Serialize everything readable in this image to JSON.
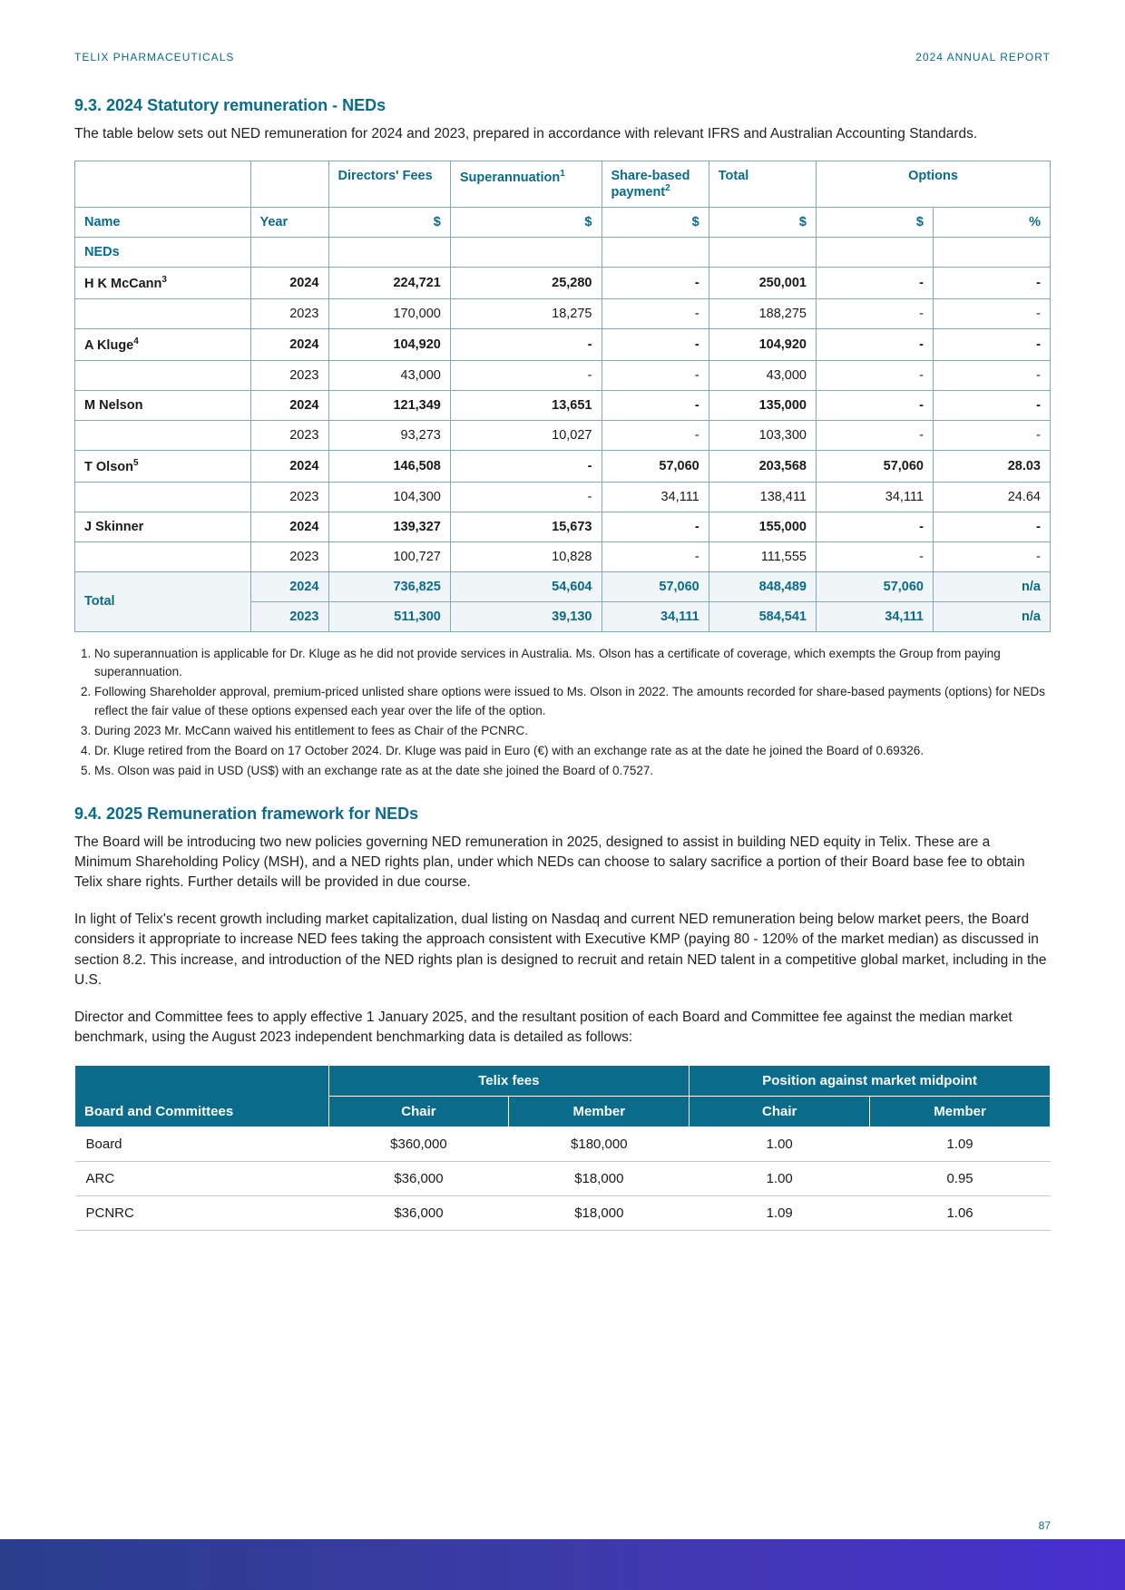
{
  "header": {
    "left": "TELIX PHARMACEUTICALS",
    "right": "2024 ANNUAL REPORT"
  },
  "section93": {
    "title": "9.3. 2024 Statutory remuneration - NEDs",
    "intro": "The table below sets out NED remuneration for 2024 and 2023, prepared in accordance with relevant IFRS and Australian Accounting Standards."
  },
  "remun_table": {
    "header_row1": {
      "blank1": "",
      "blank2": "",
      "directors_fees": "Directors' Fees",
      "superannuation": "Superannuation",
      "super_note": "1",
      "share_based": "Share-based payment",
      "share_note": "2",
      "total": "Total",
      "options": "Options"
    },
    "header_row2": {
      "name": "Name",
      "year": "Year",
      "c1": "$",
      "c2": "$",
      "c3": "$",
      "c4": "$",
      "c5": "$",
      "c6": "%"
    },
    "neds_label": "NEDs",
    "rows": [
      {
        "name": "H K McCann",
        "note": "3",
        "year": "2024",
        "v": [
          "224,721",
          "25,280",
          "-",
          "250,001",
          "-",
          "-"
        ],
        "bold": true
      },
      {
        "name": "",
        "note": "",
        "year": "2023",
        "v": [
          "170,000",
          "18,275",
          "-",
          "188,275",
          "-",
          "-"
        ],
        "bold": false
      },
      {
        "name": "A Kluge",
        "note": "4",
        "year": "2024",
        "v": [
          "104,920",
          "-",
          "-",
          "104,920",
          "-",
          "-"
        ],
        "bold": true
      },
      {
        "name": "",
        "note": "",
        "year": "2023",
        "v": [
          "43,000",
          "-",
          "-",
          "43,000",
          "-",
          "-"
        ],
        "bold": false
      },
      {
        "name": "M Nelson",
        "note": "",
        "year": "2024",
        "v": [
          "121,349",
          "13,651",
          "-",
          "135,000",
          "-",
          "-"
        ],
        "bold": true
      },
      {
        "name": "",
        "note": "",
        "year": "2023",
        "v": [
          "93,273",
          "10,027",
          "-",
          "103,300",
          "-",
          "-"
        ],
        "bold": false
      },
      {
        "name": "T Olson",
        "note": "5",
        "year": "2024",
        "v": [
          "146,508",
          "-",
          "57,060",
          "203,568",
          "57,060",
          "28.03"
        ],
        "bold": true
      },
      {
        "name": "",
        "note": "",
        "year": "2023",
        "v": [
          "104,300",
          "-",
          "34,111",
          "138,411",
          "34,111",
          "24.64"
        ],
        "bold": false
      },
      {
        "name": "J Skinner",
        "note": "",
        "year": "2024",
        "v": [
          "139,327",
          "15,673",
          "-",
          "155,000",
          "-",
          "-"
        ],
        "bold": true
      },
      {
        "name": "",
        "note": "",
        "year": "2023",
        "v": [
          "100,727",
          "10,828",
          "-",
          "111,555",
          "-",
          "-"
        ],
        "bold": false
      }
    ],
    "total_label": "Total",
    "total_rows": [
      {
        "year": "2024",
        "v": [
          "736,825",
          "54,604",
          "57,060",
          "848,489",
          "57,060",
          "n/a"
        ]
      },
      {
        "year": "2023",
        "v": [
          "511,300",
          "39,130",
          "34,111",
          "584,541",
          "34,111",
          "n/a"
        ]
      }
    ]
  },
  "footnotes": [
    "No superannuation is applicable for Dr. Kluge as he did not provide services in Australia. Ms. Olson has a certificate of coverage, which exempts the Group from paying superannuation.",
    "Following Shareholder approval, premium-priced unlisted share options were issued to Ms. Olson in 2022. The amounts recorded for share-based payments (options) for NEDs reflect the fair value of these options expensed each year over the life of the option.",
    "During 2023 Mr. McCann waived his entitlement to fees as Chair of the PCNRC.",
    "Dr. Kluge retired from the Board on 17 October 2024. Dr. Kluge was paid in Euro (€) with an exchange rate as at the date he joined the Board of 0.69326.",
    "Ms. Olson was paid in USD (US$) with an exchange rate as at the date she joined the Board of 0.7527."
  ],
  "section94": {
    "title": "9.4. 2025 Remuneration framework for NEDs",
    "p1": "The Board will be introducing two new policies governing NED remuneration in 2025, designed to assist in building NED equity in Telix. These are a Minimum Shareholding Policy (MSH), and a NED rights plan, under which NEDs can choose to salary sacrifice a portion of their Board base fee to obtain Telix share rights. Further details will be provided in due course.",
    "p2": "In light of Telix's recent growth including market capitalization, dual listing on Nasdaq and current NED remuneration being below market peers, the Board considers it appropriate to increase NED fees taking the approach consistent with Executive KMP (paying 80 - 120% of the market median) as discussed in section 8.2. This increase, and introduction of the NED rights plan is designed to recruit and retain NED talent in a competitive global market, including in the U.S.",
    "p3": "Director and Committee fees to apply effective 1 January 2025, and the resultant position of each Board and Committee fee against the median market benchmark, using the August 2023 independent benchmarking data is detailed as follows:"
  },
  "fees_table": {
    "head_group1": "Telix fees",
    "head_group2": "Position against market midpoint",
    "rowhead": "Board and Committees",
    "cols": [
      "Chair",
      "Member",
      "Chair",
      "Member"
    ],
    "rows": [
      {
        "label": "Board",
        "v": [
          "$360,000",
          "$180,000",
          "1.00",
          "1.09"
        ]
      },
      {
        "label": "ARC",
        "v": [
          "$36,000",
          "$18,000",
          "1.00",
          "0.95"
        ]
      },
      {
        "label": "PCNRC",
        "v": [
          "$36,000",
          "$18,000",
          "1.09",
          "1.06"
        ]
      }
    ]
  },
  "page_number": "87"
}
